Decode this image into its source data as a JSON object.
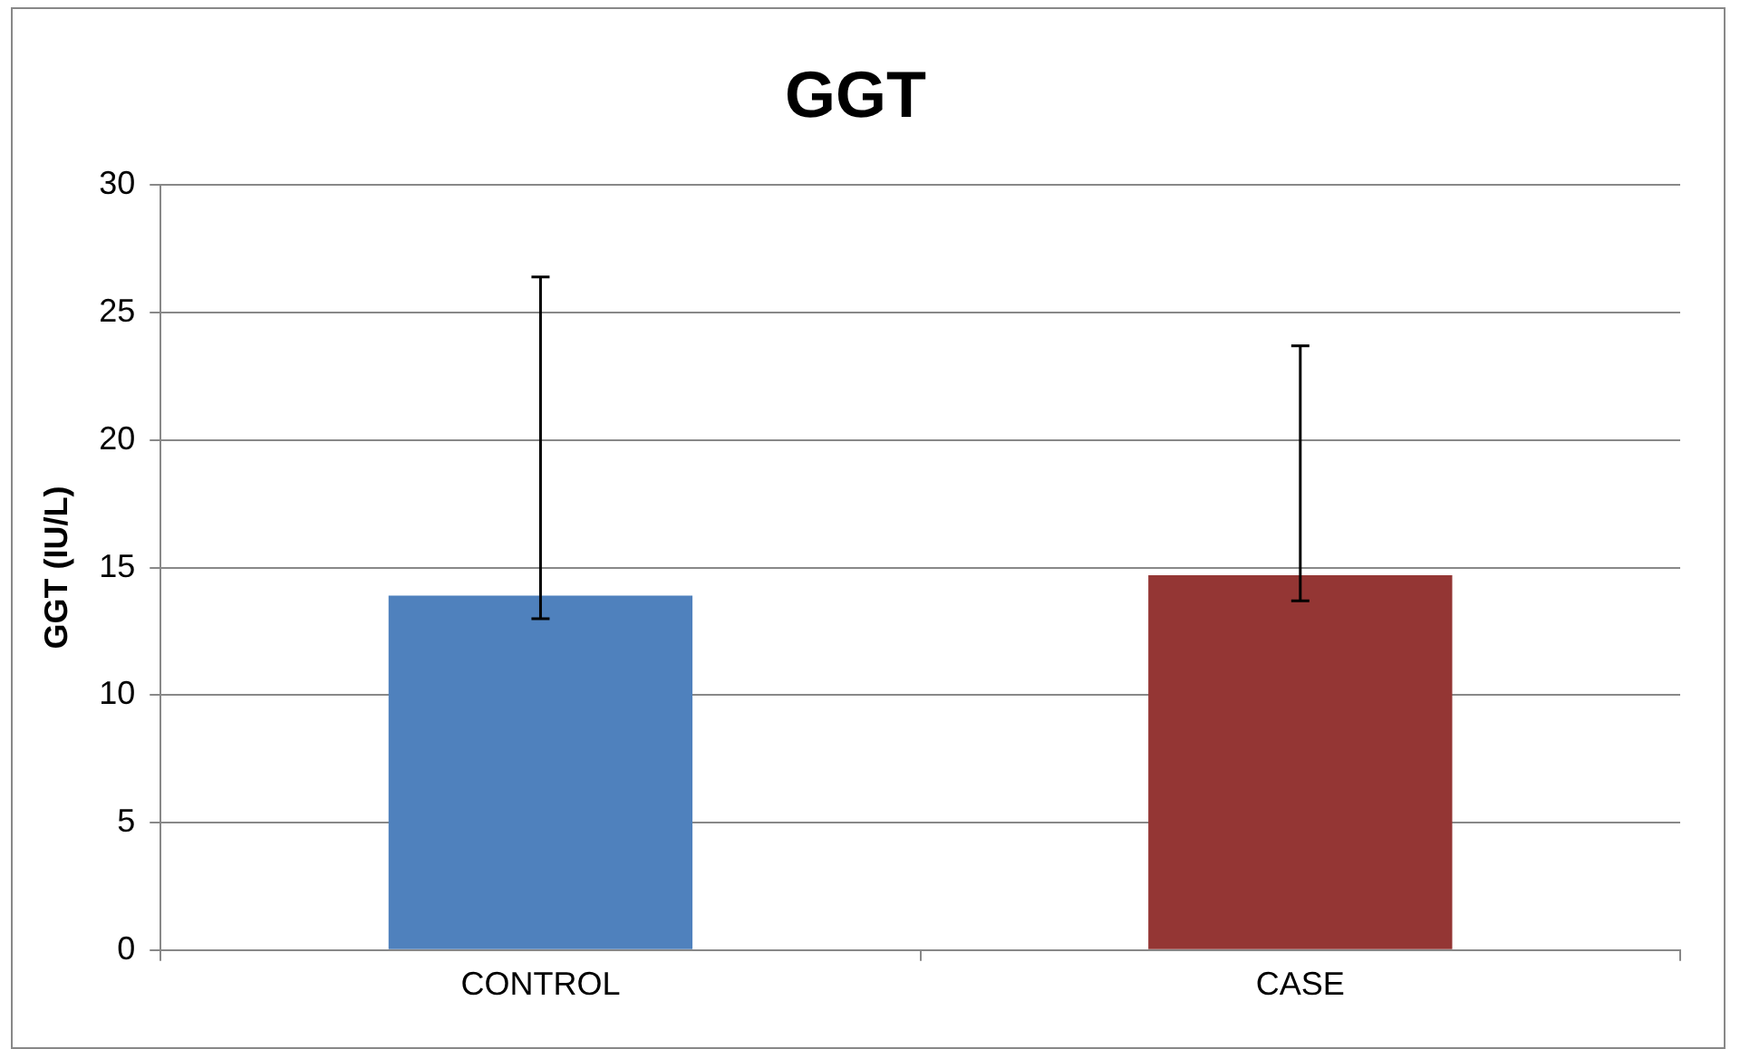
{
  "chart_data": {
    "type": "bar",
    "title": "GGT",
    "ylabel": "GGT (IU/L)",
    "categories": [
      "CONTROL",
      "CASE"
    ],
    "values": [
      13.9,
      14.7
    ],
    "colors": [
      "#4f81bd",
      "#943634"
    ],
    "errors": [
      [
        13.0,
        26.4
      ],
      [
        13.7,
        23.7
      ]
    ],
    "ylim": [
      0,
      30
    ],
    "yticks": [
      0,
      5,
      10,
      15,
      20,
      25,
      30
    ],
    "grid": "y",
    "legend": false
  }
}
